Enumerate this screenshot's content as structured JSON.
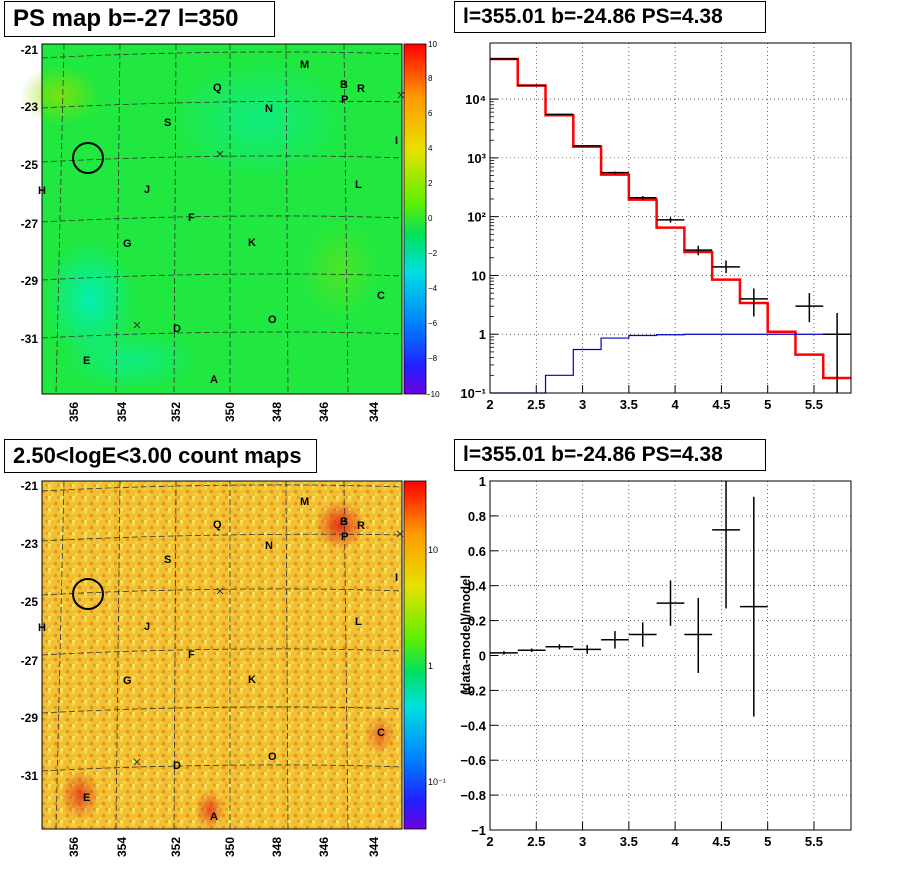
{
  "panels": {
    "ps_map_title": "PS map b=-27 l=350",
    "count_map_title": "2.50<logE<3.00 count maps",
    "spectrum_title": "l=355.01 b=-24.86 PS=4.38",
    "residual_title": "l=355.01 b=-24.86 PS=4.38"
  },
  "sky_axes": {
    "lat_ticks": [
      "-21",
      "-23",
      "-25",
      "-27",
      "-29",
      "-31"
    ],
    "lon_ticks": [
      "356",
      "354",
      "352",
      "350",
      "348",
      "346",
      "344"
    ]
  },
  "ps_colorbar_ticks": [
    "10",
    "8",
    "6",
    "4",
    "2",
    "0",
    "−2",
    "−4",
    "−6",
    "−8",
    "−10"
  ],
  "count_colorbar_ticks": [
    "10",
    "1",
    "10⁻¹"
  ],
  "region_labels": [
    "M",
    "B",
    "R",
    "Q",
    "P",
    "N",
    "S",
    "I",
    "H",
    "J",
    "L",
    "F",
    "G",
    "K",
    "C",
    "O",
    "D",
    "E",
    "A"
  ],
  "colors": {
    "model": "#ff0000",
    "background": "#0000cc",
    "data": "#000000"
  },
  "chart_data": [
    {
      "type": "line",
      "title": "l=355.01 b=-24.86 PS=4.38",
      "xlabel": "",
      "ylabel": "",
      "x_ticks": [
        "2",
        "2.5",
        "3",
        "3.5",
        "4",
        "4.5",
        "5",
        "5.5"
      ],
      "y_ticks": [
        "10⁻¹",
        "1",
        "10",
        "10²",
        "10³",
        "10⁴"
      ],
      "xlim": [
        2,
        5.9
      ],
      "ylim": [
        0.1,
        90000
      ],
      "yscale": "log",
      "grid": true,
      "bin_edges": [
        2.0,
        2.3,
        2.6,
        2.9,
        3.2,
        3.5,
        3.8,
        4.1,
        4.4,
        4.7,
        5.0,
        5.3,
        5.6,
        5.9
      ],
      "series": [
        {
          "values": [
            48000,
            17000,
            5300,
            1550,
            520,
            195,
            65,
            25,
            8.5,
            3.4,
            1.1,
            0.45,
            0.18
          ]
        },
        {
          "values": [
            0.1,
            0.1,
            0.2,
            0.55,
            0.86,
            0.95,
            0.98,
            1.0,
            1.0,
            1.0,
            1.0,
            1.0,
            1.0
          ]
        }
      ],
      "data_points": [
        {
          "x": 2.15,
          "y": 48000,
          "xerr": 0.15,
          "ylo": 47500,
          "yhi": 48500
        },
        {
          "x": 2.45,
          "y": 17000,
          "xerr": 0.15,
          "ylo": 16800,
          "yhi": 17200
        },
        {
          "x": 2.75,
          "y": 5500,
          "xerr": 0.15,
          "ylo": 5400,
          "yhi": 5600
        },
        {
          "x": 3.05,
          "y": 1600,
          "xerr": 0.15,
          "ylo": 1550,
          "yhi": 1650
        },
        {
          "x": 3.35,
          "y": 560,
          "xerr": 0.15,
          "ylo": 535,
          "yhi": 585
        },
        {
          "x": 3.65,
          "y": 210,
          "xerr": 0.15,
          "ylo": 195,
          "yhi": 225
        },
        {
          "x": 3.95,
          "y": 88,
          "xerr": 0.15,
          "ylo": 79,
          "yhi": 97
        },
        {
          "x": 4.25,
          "y": 27,
          "xerr": 0.15,
          "ylo": 22,
          "yhi": 32
        },
        {
          "x": 4.55,
          "y": 14,
          "xerr": 0.15,
          "ylo": 11,
          "yhi": 18
        },
        {
          "x": 4.85,
          "y": 4,
          "xerr": 0.15,
          "ylo": 2,
          "yhi": 6
        },
        {
          "x": 5.45,
          "y": 3,
          "xerr": 0.15,
          "ylo": 1.6,
          "yhi": 5
        },
        {
          "x": 5.75,
          "y": 1,
          "xerr": 0.15,
          "ylo": 0.1,
          "yhi": 2.3
        }
      ]
    },
    {
      "type": "scatter",
      "title": "l=355.01 b=-24.86 PS=4.38",
      "xlabel": "",
      "ylabel": "(data-model)/model",
      "x_ticks": [
        "2",
        "2.5",
        "3",
        "3.5",
        "4",
        "4.5",
        "5",
        "5.5"
      ],
      "y_ticks": [
        "1",
        "0.8",
        "0.6",
        "0.4",
        "0.2",
        "0",
        "−0.2",
        "−0.4",
        "−0.6",
        "−0.8",
        "−1"
      ],
      "xlim": [
        2,
        5.9
      ],
      "ylim": [
        -1,
        1
      ],
      "grid": true,
      "data_points": [
        {
          "x": 2.15,
          "y": 0.015,
          "xerr": 0.15,
          "ylo": 0.005,
          "yhi": 0.025
        },
        {
          "x": 2.45,
          "y": 0.03,
          "xerr": 0.15,
          "ylo": 0.02,
          "yhi": 0.04
        },
        {
          "x": 2.75,
          "y": 0.05,
          "xerr": 0.15,
          "ylo": 0.035,
          "yhi": 0.065
        },
        {
          "x": 3.05,
          "y": 0.035,
          "xerr": 0.15,
          "ylo": 0.01,
          "yhi": 0.06
        },
        {
          "x": 3.35,
          "y": 0.09,
          "xerr": 0.15,
          "ylo": 0.04,
          "yhi": 0.14
        },
        {
          "x": 3.65,
          "y": 0.12,
          "xerr": 0.15,
          "ylo": 0.05,
          "yhi": 0.19
        },
        {
          "x": 3.95,
          "y": 0.3,
          "xerr": 0.15,
          "ylo": 0.17,
          "yhi": 0.43
        },
        {
          "x": 4.25,
          "y": 0.12,
          "xerr": 0.15,
          "ylo": -0.1,
          "yhi": 0.33
        },
        {
          "x": 4.55,
          "y": 0.72,
          "xerr": 0.15,
          "ylo": 0.27,
          "yhi": 1.0
        },
        {
          "x": 4.85,
          "y": 0.28,
          "xerr": 0.15,
          "ylo": -0.35,
          "yhi": 0.91
        }
      ]
    }
  ]
}
